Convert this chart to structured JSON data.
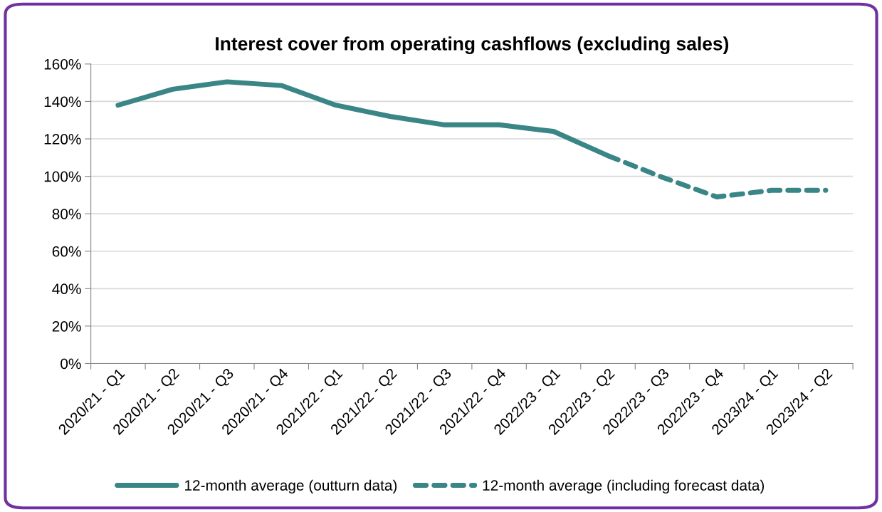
{
  "chart_data": {
    "type": "line",
    "title": "Interest cover from operating cashflows (excluding sales)",
    "categories": [
      "2020/21 - Q1",
      "2020/21 - Q2",
      "2020/21 - Q3",
      "2020/21 - Q4",
      "2021/22 - Q1",
      "2021/22 - Q2",
      "2021/22 - Q3",
      "2021/22 - Q4",
      "2022/23 - Q1",
      "2022/23 - Q2",
      "2022/23 - Q3",
      "2022/23 - Q4",
      "2023/24 - Q1",
      "2023/24 - Q2"
    ],
    "series": [
      {
        "name": "12-month average (outturn data)",
        "color": "#3a8687",
        "line_style": "solid",
        "values": [
          138,
          146.5,
          150.5,
          148.5,
          138,
          132,
          127.5,
          127.5,
          124,
          111,
          null,
          null,
          null,
          null
        ]
      },
      {
        "name": "12-month average (including forecast data)",
        "color": "#3a8687",
        "line_style": "dashed",
        "values": [
          null,
          null,
          null,
          null,
          null,
          null,
          null,
          null,
          null,
          111,
          99.5,
          89,
          92.5,
          92.5
        ]
      }
    ],
    "ylim": [
      0,
      160
    ],
    "yticks": [
      {
        "value": 0,
        "label": "0%"
      },
      {
        "value": 20,
        "label": "20%"
      },
      {
        "value": 40,
        "label": "40%"
      },
      {
        "value": 60,
        "label": "60%"
      },
      {
        "value": 80,
        "label": "80%"
      },
      {
        "value": 100,
        "label": "100%"
      },
      {
        "value": 120,
        "label": "120%"
      },
      {
        "value": 140,
        "label": "140%"
      },
      {
        "value": 160,
        "label": "160%"
      }
    ],
    "grid": "y",
    "legend": "bottom",
    "marker": "none"
  }
}
